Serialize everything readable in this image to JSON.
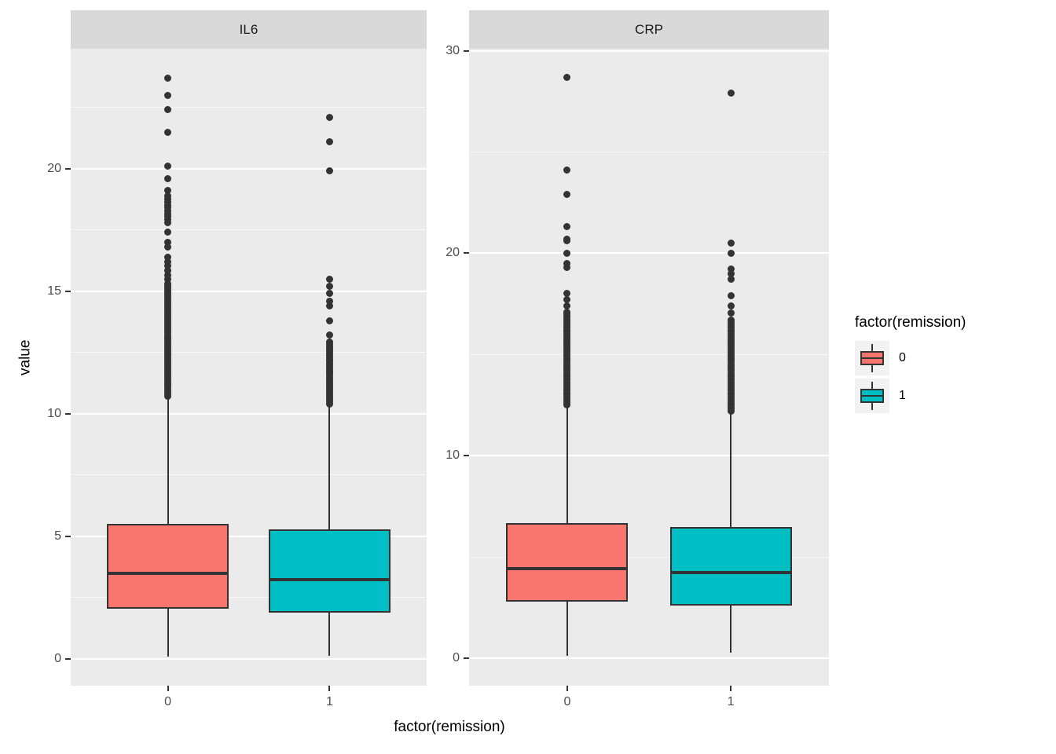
{
  "chart_data": {
    "type": "boxplot",
    "title": "",
    "xlabel": "factor(remission)",
    "ylabel": "value",
    "grid": "on",
    "legend_position": "right",
    "legend": {
      "title": "factor(remission)",
      "entries": [
        {
          "label": "0",
          "color": "#F8766D"
        },
        {
          "label": "1",
          "color": "#00BFC4"
        }
      ]
    },
    "point_color": "#333333",
    "facets": [
      {
        "label": "IL6",
        "ylim": [
          -1.1,
          24.9
        ],
        "yticks": [
          0,
          5,
          10,
          15,
          20
        ],
        "yticks_minor": [
          2.5,
          7.5,
          12.5,
          17.5,
          22.5
        ],
        "groups": [
          {
            "x": "0",
            "fill": "#F8766D",
            "stats": {
              "whisker_low": 0.1,
              "q1": 2.05,
              "median": 3.49,
              "q3": 5.5,
              "whisker_high": 10.7
            },
            "outliers_sparse": [
              23.7,
              23.0,
              22.4,
              21.5,
              20.1,
              19.6,
              19.1,
              17.4,
              17.0,
              16.8
            ],
            "outlier_bands": [
              {
                "from": 17.8,
                "to": 18.9,
                "step": 0.12
              },
              {
                "from": 15.3,
                "to": 16.5,
                "step": 0.18
              },
              {
                "from": 10.7,
                "to": 15.3,
                "step": 0.09
              }
            ]
          },
          {
            "x": "1",
            "fill": "#00BFC4",
            "stats": {
              "whisker_low": 0.12,
              "q1": 1.89,
              "median": 3.23,
              "q3": 5.28,
              "whisker_high": 10.4
            },
            "outliers_sparse": [
              22.1,
              21.1,
              19.9,
              15.5,
              15.2,
              14.9,
              14.6,
              14.4,
              13.8,
              13.2
            ],
            "outlier_bands": [
              {
                "from": 10.4,
                "to": 13.0,
                "step": 0.09
              }
            ]
          }
        ]
      },
      {
        "label": "CRP",
        "ylim": [
          -1.36,
          30.1
        ],
        "yticks": [
          0,
          10,
          20,
          30
        ],
        "yticks_minor": [
          5,
          15,
          25
        ],
        "groups": [
          {
            "x": "0",
            "fill": "#F8766D",
            "stats": {
              "whisker_low": 0.1,
              "q1": 2.79,
              "median": 4.42,
              "q3": 6.67,
              "whisker_high": 12.5
            },
            "outliers_sparse": [
              28.7,
              24.1,
              22.9,
              21.3,
              20.7,
              20.6,
              20.0,
              19.5,
              19.3
            ],
            "outlier_bands": [
              {
                "from": 17.1,
                "to": 18.2,
                "step": 0.3
              },
              {
                "from": 12.5,
                "to": 17.0,
                "step": 0.1
              }
            ]
          },
          {
            "x": "1",
            "fill": "#00BFC4",
            "stats": {
              "whisker_low": 0.25,
              "q1": 2.6,
              "median": 4.22,
              "q3": 6.47,
              "whisker_high": 12.2
            },
            "outliers_sparse": [
              27.9,
              20.5,
              20.0,
              19.2,
              19.0,
              18.7,
              17.9
            ],
            "outlier_bands": [
              {
                "from": 16.7,
                "to": 17.45,
                "step": 0.35
              },
              {
                "from": 12.2,
                "to": 16.6,
                "step": 0.1
              }
            ]
          }
        ]
      }
    ],
    "colors": {
      "panel_background": "#EBEBEB",
      "strip_background": "#D9D9D9",
      "grid_major": "#FFFFFF",
      "grid_minor": "#F7F7F7",
      "box_outline": "#333333",
      "axis_text": "#4D4D4D"
    }
  }
}
